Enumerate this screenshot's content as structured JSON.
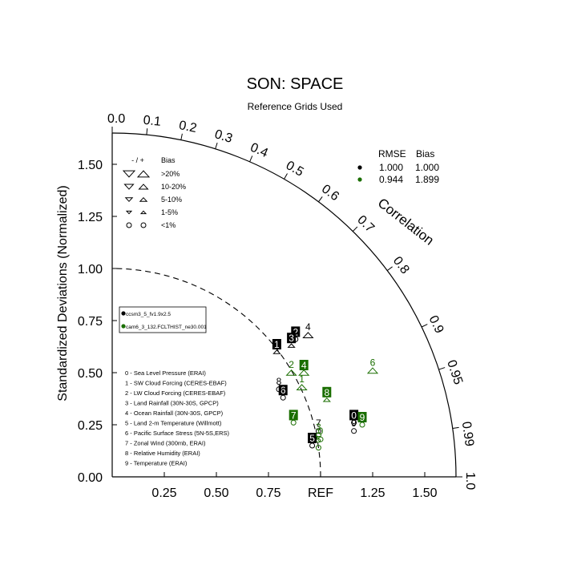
{
  "chart_data": {
    "type": "scatter",
    "title": "SON: SPACE",
    "subtitle": "Reference Grids Used",
    "ylabel": "Standardized Deviations (Normalized)",
    "arc_label": "Correlation",
    "x_ticks": [
      "0.25",
      "0.50",
      "0.75",
      "REF",
      "1.25",
      "1.50"
    ],
    "y_ticks": [
      "0.00",
      "0.25",
      "0.50",
      "0.75",
      "1.00",
      "1.25",
      "1.50"
    ],
    "corr_ticks": [
      "0.0",
      "0.1",
      "0.2",
      "0.3",
      "0.4",
      "0.5",
      "0.6",
      "0.7",
      "0.8",
      "0.9",
      "0.95",
      "0.99",
      "1.0"
    ],
    "std_range": [
      0,
      1.65
    ],
    "reference_std": 1.0,
    "bias_legend": {
      "header_sign": "- / +",
      "header_bias": "Bias",
      "rows": [
        ">20%",
        "10-20%",
        "5-10%",
        "1-5%",
        "<1%"
      ]
    },
    "rmse_table": {
      "headers": [
        "RMSE",
        "Bias"
      ],
      "rows": [
        {
          "rmse": "1.000",
          "bias": "1.000",
          "color": "#000000"
        },
        {
          "rmse": "0.944",
          "bias": "1.899",
          "color": "#1a6e00"
        }
      ]
    },
    "series": [
      {
        "name": "ccsm3_5_fv1.9x2.5",
        "color": "#000000",
        "points": [
          {
            "label": "0",
            "x": 1.16,
            "y": 0.26,
            "marker": "circle",
            "boxed": true
          },
          {
            "label": "1",
            "x": 0.79,
            "y": 0.6,
            "marker": "tri-up-small",
            "boxed": true
          },
          {
            "label": "2",
            "x": 0.88,
            "y": 0.66,
            "marker": "circle",
            "boxed": true
          },
          {
            "label": "3",
            "x": 0.86,
            "y": 0.63,
            "marker": "tri-up-small",
            "boxed": true
          },
          {
            "label": "4",
            "x": 0.94,
            "y": 0.68,
            "marker": "tri-up",
            "boxed": false
          },
          {
            "label": "5",
            "x": 0.96,
            "y": 0.15,
            "marker": "circle",
            "boxed": true
          },
          {
            "label": "6",
            "x": 0.82,
            "y": 0.38,
            "marker": "circle",
            "boxed": true
          },
          {
            "label": "7",
            "x": 0.99,
            "y": 0.22,
            "marker": "circle",
            "boxed": false
          },
          {
            "label": "8",
            "x": 0.8,
            "y": 0.42,
            "marker": "circle",
            "boxed": false
          },
          {
            "label": "9",
            "x": 1.16,
            "y": 0.22,
            "marker": "circle",
            "boxed": false
          }
        ]
      },
      {
        "name": "cam6_3_132.FCLTHIST_ne30.001",
        "color": "#1a6e00",
        "points": [
          {
            "label": "0",
            "x": 1.0,
            "y": 0.18,
            "marker": "circle",
            "boxed": false
          },
          {
            "label": "1",
            "x": 0.91,
            "y": 0.43,
            "marker": "tri-up",
            "boxed": false
          },
          {
            "label": "2",
            "x": 0.86,
            "y": 0.5,
            "marker": "tri-up",
            "boxed": false
          },
          {
            "label": "3",
            "x": 0.99,
            "y": 0.2,
            "marker": "circle",
            "boxed": false
          },
          {
            "label": "4",
            "x": 0.92,
            "y": 0.5,
            "marker": "tri-up",
            "boxed": true
          },
          {
            "label": "5",
            "x": 0.99,
            "y": 0.14,
            "marker": "circle",
            "boxed": false
          },
          {
            "label": "6",
            "x": 1.25,
            "y": 0.51,
            "marker": "tri-up",
            "boxed": false
          },
          {
            "label": "7",
            "x": 0.87,
            "y": 0.26,
            "marker": "circle",
            "boxed": true
          },
          {
            "label": "8",
            "x": 1.03,
            "y": 0.37,
            "marker": "tri-up-small",
            "boxed": true
          },
          {
            "label": "9",
            "x": 1.2,
            "y": 0.25,
            "marker": "circle",
            "boxed": true
          }
        ]
      }
    ],
    "variables": [
      "0 - Sea Level Pressure (ERAI)",
      "1 - SW Cloud Forcing (CERES-EBAF)",
      "2 - LW Cloud Forcing (CERES-EBAF)",
      "3 - Land Rainfall (30N-30S, GPCP)",
      "4 - Ocean Rainfall (30N-30S, GPCP)",
      "5 - Land 2-m Temperature (Willmott)",
      "6 - Pacific Surface Stress (5N-5S,ERS)",
      "7 - Zonal Wind (300mb, ERAI)",
      "8 - Relative Humidity (ERAI)",
      "9 - Temperature (ERAI)"
    ]
  }
}
